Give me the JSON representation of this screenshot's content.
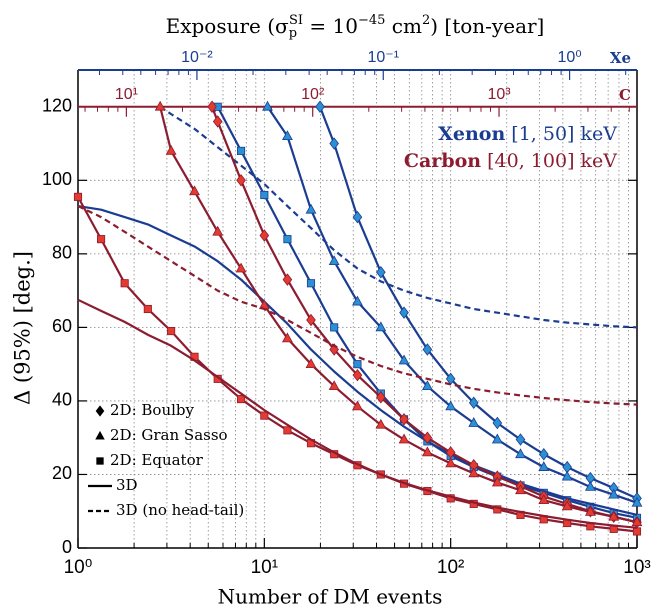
{
  "chart_data": {
    "type": "line",
    "xlabel": "Number of DM events",
    "ylabel": "Δ (95%) [deg.]",
    "top_title": [
      {
        "text": "Exposure (σ"
      },
      {
        "text": "p",
        "shift": "sub"
      },
      {
        "text": "SI",
        "shift": "sup-stack"
      },
      {
        "text": " = 10",
        "shift": "base"
      },
      {
        "text": "−45",
        "shift": "sup"
      },
      {
        "text": " cm",
        "shift": "base"
      },
      {
        "text": "2",
        "shift": "sup"
      },
      {
        "text": ") [ton-year]",
        "shift": "base"
      }
    ],
    "xlog": true,
    "xlim": [
      1,
      1000
    ],
    "xticks": [
      {
        "value": 1,
        "label": "10⁰"
      },
      {
        "value": 10,
        "label": "10¹"
      },
      {
        "value": 100,
        "label": "10²"
      },
      {
        "value": 1000,
        "label": "10³"
      }
    ],
    "ylim": [
      0,
      130
    ],
    "yticks": [
      0,
      20,
      40,
      60,
      80,
      100,
      120
    ],
    "grid": true,
    "top_axes": [
      {
        "label": "Xe",
        "color": "#1b3d91",
        "xlim": [
          0.0023,
          2.3
        ],
        "xticks": [
          {
            "value": 0.01,
            "label": "10⁻²"
          },
          {
            "value": 0.1,
            "label": "10⁻¹"
          },
          {
            "value": 1,
            "label": "10⁰"
          }
        ]
      },
      {
        "label": "C",
        "color": "#8c1c30",
        "xlim": [
          5.5,
          5500
        ],
        "xticks": [
          {
            "value": 10,
            "label": "10¹"
          },
          {
            "value": 100,
            "label": "10²"
          },
          {
            "value": 1000,
            "label": "10³"
          }
        ]
      }
    ],
    "annotations": [
      {
        "bold": "Xenon",
        "text": " [1, 50] keV",
        "color": "#1b3d91"
      },
      {
        "bold": "Carbon",
        "text": " [40, 100] keV",
        "color": "#8c1c30"
      }
    ],
    "legend": {
      "position": "lower left",
      "items": [
        {
          "label": "2D: Boulby",
          "marker": "diamond"
        },
        {
          "label": "2D: Gran Sasso",
          "marker": "triangle"
        },
        {
          "label": "2D: Equator",
          "marker": "square"
        },
        {
          "label": "3D",
          "line": "solid"
        },
        {
          "label": "3D (no head-tail)",
          "line": "dashed"
        }
      ]
    },
    "series": [
      {
        "color": "#1b3d91",
        "marker": "diamond",
        "marker_color": "#2b8fd3",
        "dashed": false,
        "x": [
          19.9,
          23.7,
          31.6,
          42.2,
          56.2,
          75,
          100,
          133,
          178,
          237,
          316,
          422,
          562,
          750,
          1000
        ],
        "values": [
          120,
          110,
          90,
          75,
          64,
          54,
          46,
          39.5,
          34,
          29.5,
          25.5,
          22,
          19,
          16.3,
          13.5
        ]
      },
      {
        "color": "#1b3d91",
        "marker": "triangle",
        "marker_color": "#2b8fd3",
        "dashed": false,
        "x": [
          10.4,
          13.3,
          17.8,
          23.7,
          31.6,
          42.2,
          56.2,
          75,
          100,
          133,
          178,
          237,
          316,
          422,
          562,
          750,
          1000
        ],
        "values": [
          120,
          112,
          92,
          78,
          67,
          60,
          51,
          44,
          38.5,
          34,
          29.5,
          25.5,
          22,
          19.4,
          16.6,
          14.5,
          12.3
        ]
      },
      {
        "color": "#1b3d91",
        "marker": "square",
        "marker_color": "#2b8fd3",
        "dashed": false,
        "x": [
          5.62,
          7.5,
          10,
          13.3,
          17.8,
          23.7,
          31.6,
          42.2,
          56.2,
          75,
          100,
          133,
          178,
          237,
          316,
          422,
          562,
          750,
          1000
        ],
        "values": [
          120,
          108,
          96,
          84,
          72,
          60,
          50,
          42,
          35,
          29,
          25,
          22,
          19.4,
          17,
          15,
          13,
          11.2,
          9.5,
          8.2
        ]
      },
      {
        "color": "#1b3d91",
        "marker": null,
        "dashed": false,
        "x": [
          1,
          1.33,
          1.78,
          2.37,
          3.16,
          4.22,
          5.62,
          7.5,
          10,
          13.3,
          17.8,
          23.7,
          31.6,
          42.2,
          56.2,
          75,
          100,
          133,
          178,
          237,
          316,
          422,
          562,
          750,
          1000
        ],
        "values": [
          93,
          92,
          90,
          88,
          85,
          82,
          78,
          73,
          67,
          61,
          54,
          48,
          42.5,
          37.5,
          33,
          29,
          25.5,
          22.5,
          20,
          17.5,
          15.5,
          13.5,
          12,
          10.5,
          9
        ]
      },
      {
        "color": "#1b3d91",
        "marker": null,
        "dashed": true,
        "x": [
          2.76,
          3.16,
          4.22,
          5.62,
          7.5,
          10,
          13.3,
          17.8,
          23.7,
          31.6,
          42.2,
          56.2,
          75,
          100,
          133,
          178,
          237,
          316,
          422,
          562,
          750,
          1000
        ],
        "values": [
          120,
          118,
          114,
          109,
          104,
          99,
          93,
          87,
          81,
          76,
          72.5,
          70,
          68,
          66.5,
          65,
          64,
          63,
          62,
          61.3,
          60.8,
          60.3,
          60
        ]
      },
      {
        "color": "#8c1c30",
        "marker": "diamond",
        "marker_color": "#e53a30",
        "dashed": false,
        "x": [
          5.24,
          5.62,
          7.5,
          10,
          13.3,
          17.8,
          23.7,
          31.6,
          42.2,
          56.2,
          75,
          100,
          133,
          178,
          237,
          316,
          422,
          562,
          750,
          1000
        ],
        "values": [
          120,
          116,
          100,
          85,
          73,
          62,
          54,
          47,
          41,
          35,
          30,
          26,
          22.5,
          19.4,
          16.8,
          14,
          12,
          10,
          8.5,
          7
        ]
      },
      {
        "color": "#8c1c30",
        "marker": "triangle",
        "marker_color": "#e53a30",
        "dashed": false,
        "x": [
          2.76,
          3.16,
          4.22,
          5.62,
          7.5,
          10,
          13.3,
          17.8,
          23.7,
          31.6,
          42.2,
          56.2,
          75,
          100,
          133,
          178,
          237,
          316,
          422,
          562,
          750,
          1000
        ],
        "values": [
          120,
          108,
          97,
          86,
          76,
          66,
          57,
          50,
          44,
          38.5,
          33.5,
          29.5,
          26,
          23,
          20.3,
          17.8,
          15.7,
          13,
          11.3,
          9.8,
          8.5,
          7
        ]
      },
      {
        "color": "#8c1c30",
        "marker": "square",
        "marker_color": "#e53a30",
        "dashed": false,
        "x": [
          1,
          1.33,
          1.78,
          2.37,
          3.16,
          4.22,
          5.62,
          7.5,
          10,
          13.3,
          17.8,
          23.7,
          31.6,
          42.2,
          56.2,
          75,
          100,
          133,
          178,
          237,
          316,
          422,
          562,
          750,
          1000
        ],
        "values": [
          95.5,
          84,
          72,
          65,
          59,
          52,
          46,
          40.5,
          36,
          32,
          28.5,
          25.5,
          22.5,
          20,
          17.5,
          15.5,
          13.5,
          12,
          10.5,
          9,
          7.8,
          6.8,
          5.9,
          5.2,
          4.5
        ]
      },
      {
        "color": "#8c1c30",
        "marker": null,
        "dashed": false,
        "x": [
          1,
          1.33,
          1.78,
          2.37,
          3.16,
          4.22,
          5.62,
          7.5,
          10,
          13.3,
          17.8,
          23.7,
          31.6,
          42.2,
          56.2,
          75,
          100,
          133,
          178,
          237,
          316,
          422,
          562,
          750,
          1000
        ],
        "values": [
          67.5,
          64.5,
          61.5,
          58,
          55,
          51,
          46.5,
          42,
          37.5,
          33.5,
          29.5,
          26,
          22.8,
          20,
          17.7,
          15.7,
          14,
          12.4,
          11,
          9.8,
          8.7,
          7.7,
          6.8,
          6.1,
          5.5
        ]
      },
      {
        "color": "#8c1c30",
        "marker": null,
        "dashed": true,
        "x": [
          1,
          1.33,
          1.78,
          2.37,
          3.16,
          4.22,
          5.62,
          7.5,
          10,
          13.3,
          17.8,
          23.7,
          31.6,
          42.2,
          56.2,
          75,
          100,
          133,
          178,
          237,
          316,
          422,
          562,
          750,
          1000
        ],
        "values": [
          93,
          90,
          86,
          82,
          78,
          74,
          70,
          67,
          65,
          62,
          58.5,
          55,
          52,
          49.5,
          47.5,
          46,
          44.5,
          43.3,
          42.3,
          41.5,
          40.8,
          40.2,
          39.7,
          39.3,
          39
        ]
      }
    ]
  }
}
